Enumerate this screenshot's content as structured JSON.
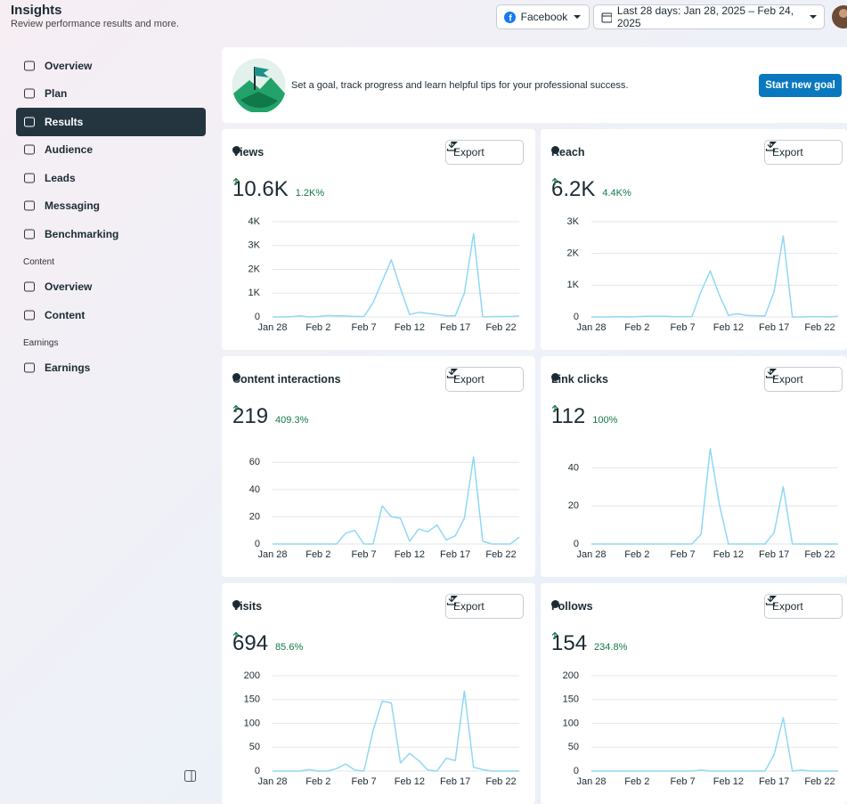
{
  "header": {
    "title": "Insights",
    "subtitle": "Review performance results and more.",
    "platform": "Facebook",
    "date_range": "Last 28 days: Jan 28, 2025 – Feb 24, 2025"
  },
  "nav": [
    {
      "label": "Overview"
    },
    {
      "label": "Plan"
    },
    {
      "label": "Results",
      "active": true
    },
    {
      "label": "Audience"
    },
    {
      "label": "Leads"
    },
    {
      "label": "Messaging"
    },
    {
      "label": "Benchmarking"
    },
    {
      "heading": "Content"
    },
    {
      "label": "Overview"
    },
    {
      "label": "Content"
    },
    {
      "heading": "Earnings"
    },
    {
      "label": "Earnings"
    }
  ],
  "banner": {
    "text": "Set a goal, track progress and learn helpful tips for your professional success.",
    "button": "Start new goal"
  },
  "cards": [
    {
      "title": "Views",
      "value": "10.6K",
      "change": "1.2K%",
      "export": "Export",
      "chart": {
        "type": "line",
        "color": "#8fd8f3",
        "categories": [
          "Jan 28",
          null,
          null,
          null,
          null,
          "Feb 2",
          null,
          null,
          null,
          null,
          "Feb 7",
          null,
          null,
          null,
          null,
          "Feb 12",
          null,
          null,
          null,
          null,
          "Feb 17",
          null,
          null,
          null,
          null,
          "Feb 22",
          null,
          null
        ],
        "values": [
          0,
          0,
          10,
          50,
          0,
          20,
          60,
          50,
          40,
          20,
          20,
          600,
          1500,
          2400,
          1200,
          100,
          200,
          150,
          100,
          50,
          50,
          1000,
          3500,
          0,
          20,
          20,
          20,
          50
        ],
        "ylim": [
          0,
          4000
        ],
        "yticks": [
          0,
          {
            "value": 1000,
            "label": "1K"
          },
          {
            "value": 2000,
            "label": "2K"
          },
          {
            "value": 3000,
            "label": "3K"
          },
          {
            "value": 4000,
            "label": "4K"
          }
        ]
      }
    },
    {
      "title": "Reach",
      "value": "6.2K",
      "change": "4.4K%",
      "export": "Export",
      "chart": {
        "type": "line",
        "color": "#8fd8f3",
        "categories": [
          "Jan 28",
          null,
          null,
          null,
          null,
          "Feb 2",
          null,
          null,
          null,
          null,
          "Feb 7",
          null,
          null,
          null,
          null,
          "Feb 12",
          null,
          null,
          null,
          null,
          "Feb 17",
          null,
          null,
          null,
          null,
          "Feb 22",
          null,
          null
        ],
        "values": [
          0,
          0,
          0,
          10,
          0,
          10,
          20,
          20,
          20,
          10,
          10,
          10,
          800,
          1450,
          700,
          50,
          100,
          50,
          40,
          30,
          800,
          2550,
          0,
          0,
          10,
          10,
          0,
          20
        ],
        "ylim": [
          0,
          3000
        ],
        "yticks": [
          0,
          {
            "value": 1000,
            "label": "1K"
          },
          {
            "value": 2000,
            "label": "2K"
          },
          {
            "value": 3000,
            "label": "3K"
          }
        ]
      }
    },
    {
      "title": "Content interactions",
      "value": "219",
      "change": "409.3%",
      "export": "Export",
      "chart": {
        "type": "line",
        "color": "#8fd8f3",
        "categories": [
          "Jan 28",
          null,
          null,
          null,
          null,
          "Feb 2",
          null,
          null,
          null,
          null,
          "Feb 7",
          null,
          null,
          null,
          null,
          "Feb 12",
          null,
          null,
          null,
          null,
          "Feb 17",
          null,
          null,
          null,
          null,
          "Feb 22",
          null,
          null
        ],
        "values": [
          0,
          0,
          0,
          0,
          0,
          0,
          0,
          0,
          8,
          10,
          0,
          0,
          28,
          20,
          19,
          2,
          11,
          9,
          14,
          3,
          6,
          19,
          64,
          2,
          0,
          0,
          0,
          5
        ],
        "ylim": [
          0,
          70
        ],
        "yticks": [
          0,
          20,
          40,
          60
        ]
      }
    },
    {
      "title": "Link clicks",
      "value": "112",
      "change": "100%",
      "export": "Export",
      "chart": {
        "type": "line",
        "color": "#8fd8f3",
        "categories": [
          "Jan 28",
          null,
          null,
          null,
          null,
          "Feb 2",
          null,
          null,
          null,
          null,
          "Feb 7",
          null,
          null,
          null,
          null,
          "Feb 12",
          null,
          null,
          null,
          null,
          "Feb 17",
          null,
          null,
          null,
          null,
          "Feb 22",
          null,
          null
        ],
        "values": [
          0,
          0,
          0,
          0,
          0,
          0,
          0,
          0,
          0,
          0,
          0,
          0,
          5,
          50,
          21,
          0,
          0,
          0,
          0,
          0,
          6,
          30,
          0,
          0,
          0,
          0,
          0,
          0
        ],
        "ylim": [
          0,
          50
        ],
        "yticks": [
          0,
          20,
          40
        ]
      }
    },
    {
      "title": "Visits",
      "value": "694",
      "change": "85.6%",
      "export": "Export",
      "chart": {
        "type": "line",
        "color": "#8fd8f3",
        "categories": [
          "Jan 28",
          null,
          null,
          null,
          null,
          "Feb 2",
          null,
          null,
          null,
          null,
          "Feb 7",
          null,
          null,
          null,
          null,
          "Feb 12",
          null,
          null,
          null,
          null,
          "Feb 17",
          null,
          null,
          null,
          null,
          "Feb 22",
          null,
          null
        ],
        "values": [
          0,
          0,
          0,
          0,
          3,
          0,
          0,
          5,
          15,
          2,
          0,
          85,
          147,
          143,
          17,
          37,
          22,
          2,
          0,
          27,
          22,
          168,
          8,
          3,
          0,
          0,
          0,
          0
        ],
        "ylim": [
          0,
          200
        ],
        "yticks": [
          0,
          50,
          100,
          150,
          200
        ]
      }
    },
    {
      "title": "Follows",
      "value": "154",
      "change": "234.8%",
      "export": "Export",
      "chart": {
        "type": "line",
        "color": "#8fd8f3",
        "categories": [
          "Jan 28",
          null,
          null,
          null,
          null,
          "Feb 2",
          null,
          null,
          null,
          null,
          "Feb 7",
          null,
          null,
          null,
          null,
          "Feb 12",
          null,
          null,
          null,
          null,
          "Feb 17",
          null,
          null,
          null,
          null,
          "Feb 22",
          null,
          null
        ],
        "values": [
          0,
          0,
          0,
          0,
          0,
          0,
          0,
          0,
          0,
          0,
          0,
          0,
          2,
          0,
          0,
          0,
          0,
          0,
          0,
          0,
          35,
          112,
          0,
          2,
          0,
          0,
          0,
          0
        ],
        "ylim": [
          0,
          200
        ],
        "yticks": [
          0,
          50,
          100,
          150,
          200
        ]
      }
    }
  ]
}
